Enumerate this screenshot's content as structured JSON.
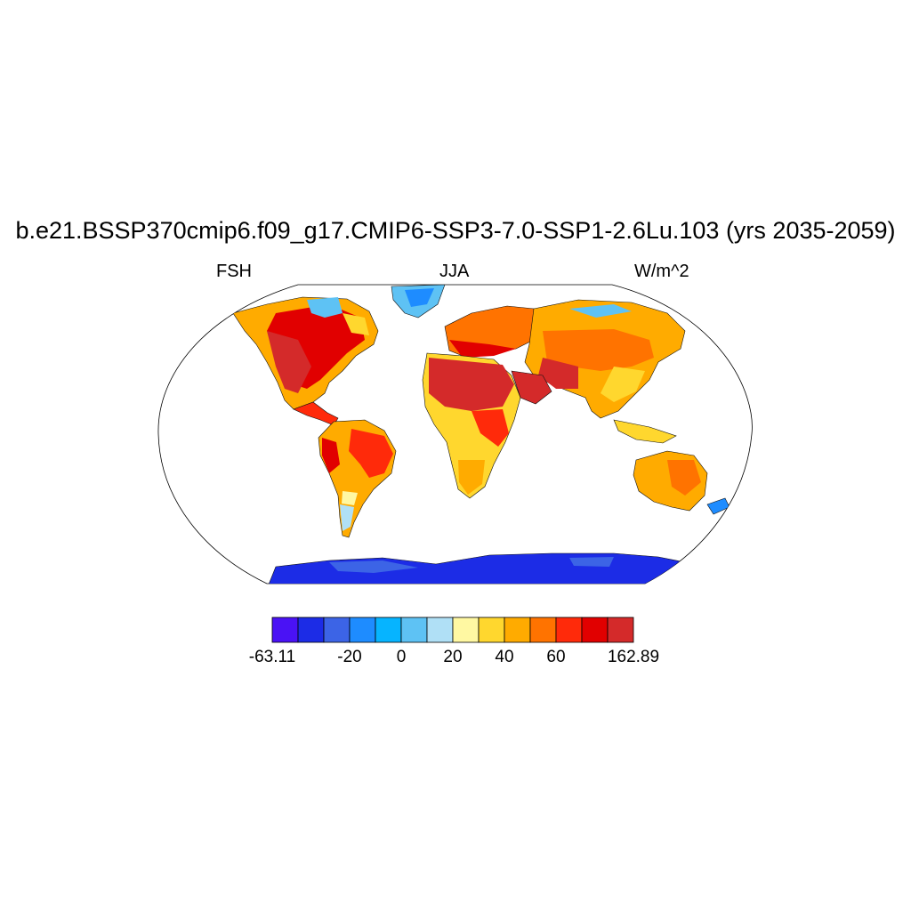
{
  "title": "b.e21.BSSP370cmip6.f09_g17.CMIP6-SSP3-7.0-SSP1-2.6Lu.103 (yrs 2035-2059)",
  "left_label": "FSH",
  "center_label": "JJA",
  "right_label": "W/m^2",
  "map": {
    "projection": "robinson",
    "variable": "FSH",
    "season": "JJA",
    "units": "W/m^2"
  },
  "colorbar": {
    "colors": [
      "#4a12f5",
      "#1c2ce6",
      "#3c64e6",
      "#1e8cff",
      "#06b4ff",
      "#5ec2f4",
      "#b0e0f6",
      "#fff8a2",
      "#ffd72e",
      "#ffab00",
      "#ff7300",
      "#ff2a0a",
      "#e10000",
      "#d42a2a"
    ],
    "tick_labels": [
      "-63.11",
      "-20",
      "0",
      "20",
      "40",
      "60",
      "162.89"
    ],
    "tick_indices": [
      0,
      3,
      5,
      7,
      9,
      11,
      14
    ]
  }
}
